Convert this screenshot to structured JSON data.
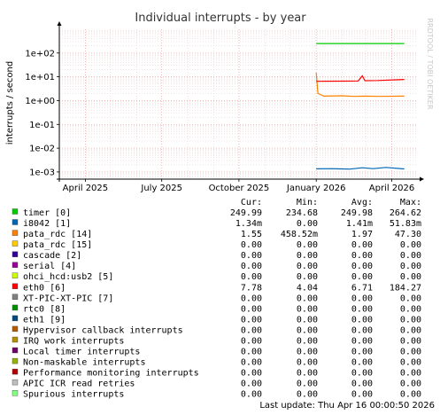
{
  "chart_data": {
    "type": "line",
    "title": "Individual interrupts - by year",
    "ylabel": "interrupts / second",
    "y_scale": "log",
    "ylim": [
      0.0005,
      1000
    ],
    "y_ticks": [
      {
        "value": 100,
        "label": "1e+02"
      },
      {
        "value": 10,
        "label": "1e+01"
      },
      {
        "value": 1,
        "label": "1e+00"
      },
      {
        "value": 0.1,
        "label": "1e-01"
      },
      {
        "value": 0.01,
        "label": "1e-02"
      },
      {
        "value": 0.001,
        "label": "1e-03"
      }
    ],
    "xlim": [
      "2025-03-01",
      "2026-04-30"
    ],
    "x_ticks": [
      {
        "value": "2025-04-01",
        "label": "April 2025"
      },
      {
        "value": "2025-07-01",
        "label": "July 2025"
      },
      {
        "value": "2025-10-01",
        "label": "October 2025"
      },
      {
        "value": "2026-01-01",
        "label": "January 2026"
      },
      {
        "value": "2026-04-01",
        "label": "April 2026"
      }
    ],
    "grid": true,
    "series": [
      {
        "name": "timer [0]",
        "color": "#00cc00",
        "points": [
          [
            "2026-01-01",
            249.99
          ],
          [
            "2026-02-01",
            249.98
          ],
          [
            "2026-03-01",
            249.98
          ],
          [
            "2026-04-16",
            249.99
          ]
        ]
      },
      {
        "name": "i8042 [1]",
        "color": "#0066b3",
        "points": [
          [
            "2026-01-01",
            0.00135
          ],
          [
            "2026-01-20",
            0.00138
          ],
          [
            "2026-02-10",
            0.00132
          ],
          [
            "2026-02-25",
            0.0015
          ],
          [
            "2026-03-10",
            0.00138
          ],
          [
            "2026-03-25",
            0.00155
          ],
          [
            "2026-04-16",
            0.00134
          ]
        ]
      },
      {
        "name": "pata_rdc [14]",
        "color": "#ff8000",
        "points": [
          [
            "2026-01-01",
            15.0
          ],
          [
            "2026-01-03",
            2.0
          ],
          [
            "2026-01-10",
            1.55
          ],
          [
            "2026-02-01",
            1.6
          ],
          [
            "2026-02-15",
            1.5
          ],
          [
            "2026-03-01",
            1.55
          ],
          [
            "2026-03-15",
            1.5
          ],
          [
            "2026-04-16",
            1.55
          ]
        ]
      },
      {
        "name": "pata_rdc [15]",
        "color": "#ffcc00",
        "points": []
      },
      {
        "name": "cascade [2]",
        "color": "#330099",
        "points": []
      },
      {
        "name": "serial [4]",
        "color": "#990099",
        "points": []
      },
      {
        "name": "ohci_hcd:usb2 [5]",
        "color": "#ccff00",
        "points": []
      },
      {
        "name": "eth0 [6]",
        "color": "#ff0000",
        "points": [
          [
            "2026-01-01",
            6.5
          ],
          [
            "2026-02-01",
            6.6
          ],
          [
            "2026-02-20",
            6.7
          ],
          [
            "2026-02-25",
            11.0
          ],
          [
            "2026-02-28",
            6.9
          ],
          [
            "2026-03-15",
            7.0
          ],
          [
            "2026-04-16",
            7.78
          ]
        ]
      },
      {
        "name": "XT-PIC-XT-PIC [7]",
        "color": "#808080",
        "points": []
      },
      {
        "name": "rtc0 [8]",
        "color": "#008f00",
        "points": []
      },
      {
        "name": "eth1 [9]",
        "color": "#00487d",
        "points": []
      },
      {
        "name": "Hypervisor callback interrupts",
        "color": "#b35a00",
        "points": []
      },
      {
        "name": "IRQ work interrupts",
        "color": "#b38f00",
        "points": []
      },
      {
        "name": "Local timer interrupts",
        "color": "#6b006b",
        "points": []
      },
      {
        "name": "Non-maskable interrupts",
        "color": "#8fb300",
        "points": []
      },
      {
        "name": "Performance monitoring interrupts",
        "color": "#b30000",
        "points": []
      },
      {
        "name": "APIC ICR read retries",
        "color": "#bebebe",
        "points": []
      },
      {
        "name": "Spurious interrupts",
        "color": "#80ff80",
        "points": []
      }
    ]
  },
  "watermark": "RRDTOOL / TOBI OETIKER",
  "legend": {
    "headers": [
      "Cur:",
      "Min:",
      "Avg:",
      "Max:"
    ],
    "rows": [
      {
        "label": "timer [0]",
        "color": "#00cc00",
        "cur": "249.99",
        "min": "234.68",
        "avg": "249.98",
        "max": "264.62"
      },
      {
        "label": "i8042 [1]",
        "color": "#0066b3",
        "cur": "1.34m",
        "min": "0.00",
        "avg": "1.41m",
        "max": "51.83m"
      },
      {
        "label": "pata_rdc [14]",
        "color": "#ff8000",
        "cur": "1.55",
        "min": "458.52m",
        "avg": "1.97",
        "max": "47.30"
      },
      {
        "label": "pata_rdc [15]",
        "color": "#ffcc00",
        "cur": "0.00",
        "min": "0.00",
        "avg": "0.00",
        "max": "0.00"
      },
      {
        "label": "cascade [2]",
        "color": "#330099",
        "cur": "0.00",
        "min": "0.00",
        "avg": "0.00",
        "max": "0.00"
      },
      {
        "label": "serial [4]",
        "color": "#990099",
        "cur": "0.00",
        "min": "0.00",
        "avg": "0.00",
        "max": "0.00"
      },
      {
        "label": "ohci_hcd:usb2 [5]",
        "color": "#ccff00",
        "cur": "0.00",
        "min": "0.00",
        "avg": "0.00",
        "max": "0.00"
      },
      {
        "label": "eth0 [6]",
        "color": "#ff0000",
        "cur": "7.78",
        "min": "4.04",
        "avg": "6.71",
        "max": "184.27"
      },
      {
        "label": "XT-PIC-XT-PIC [7]",
        "color": "#808080",
        "cur": "0.00",
        "min": "0.00",
        "avg": "0.00",
        "max": "0.00"
      },
      {
        "label": "rtc0 [8]",
        "color": "#008f00",
        "cur": "0.00",
        "min": "0.00",
        "avg": "0.00",
        "max": "0.00"
      },
      {
        "label": "eth1 [9]",
        "color": "#00487d",
        "cur": "0.00",
        "min": "0.00",
        "avg": "0.00",
        "max": "0.00"
      },
      {
        "label": "Hypervisor callback interrupts",
        "color": "#b35a00",
        "cur": "0.00",
        "min": "0.00",
        "avg": "0.00",
        "max": "0.00"
      },
      {
        "label": "IRQ work interrupts",
        "color": "#b38f00",
        "cur": "0.00",
        "min": "0.00",
        "avg": "0.00",
        "max": "0.00"
      },
      {
        "label": "Local timer interrupts",
        "color": "#6b006b",
        "cur": "0.00",
        "min": "0.00",
        "avg": "0.00",
        "max": "0.00"
      },
      {
        "label": "Non-maskable interrupts",
        "color": "#8fb300",
        "cur": "0.00",
        "min": "0.00",
        "avg": "0.00",
        "max": "0.00"
      },
      {
        "label": "Performance monitoring interrupts",
        "color": "#b30000",
        "cur": "0.00",
        "min": "0.00",
        "avg": "0.00",
        "max": "0.00"
      },
      {
        "label": "APIC ICR read retries",
        "color": "#bebebe",
        "cur": "0.00",
        "min": "0.00",
        "avg": "0.00",
        "max": "0.00"
      },
      {
        "label": "Spurious interrupts",
        "color": "#80ff80",
        "cur": "0.00",
        "min": "0.00",
        "avg": "0.00",
        "max": "0.00"
      }
    ]
  },
  "last_update": "Last update: Thu Apr 16 00:00:50 2026"
}
